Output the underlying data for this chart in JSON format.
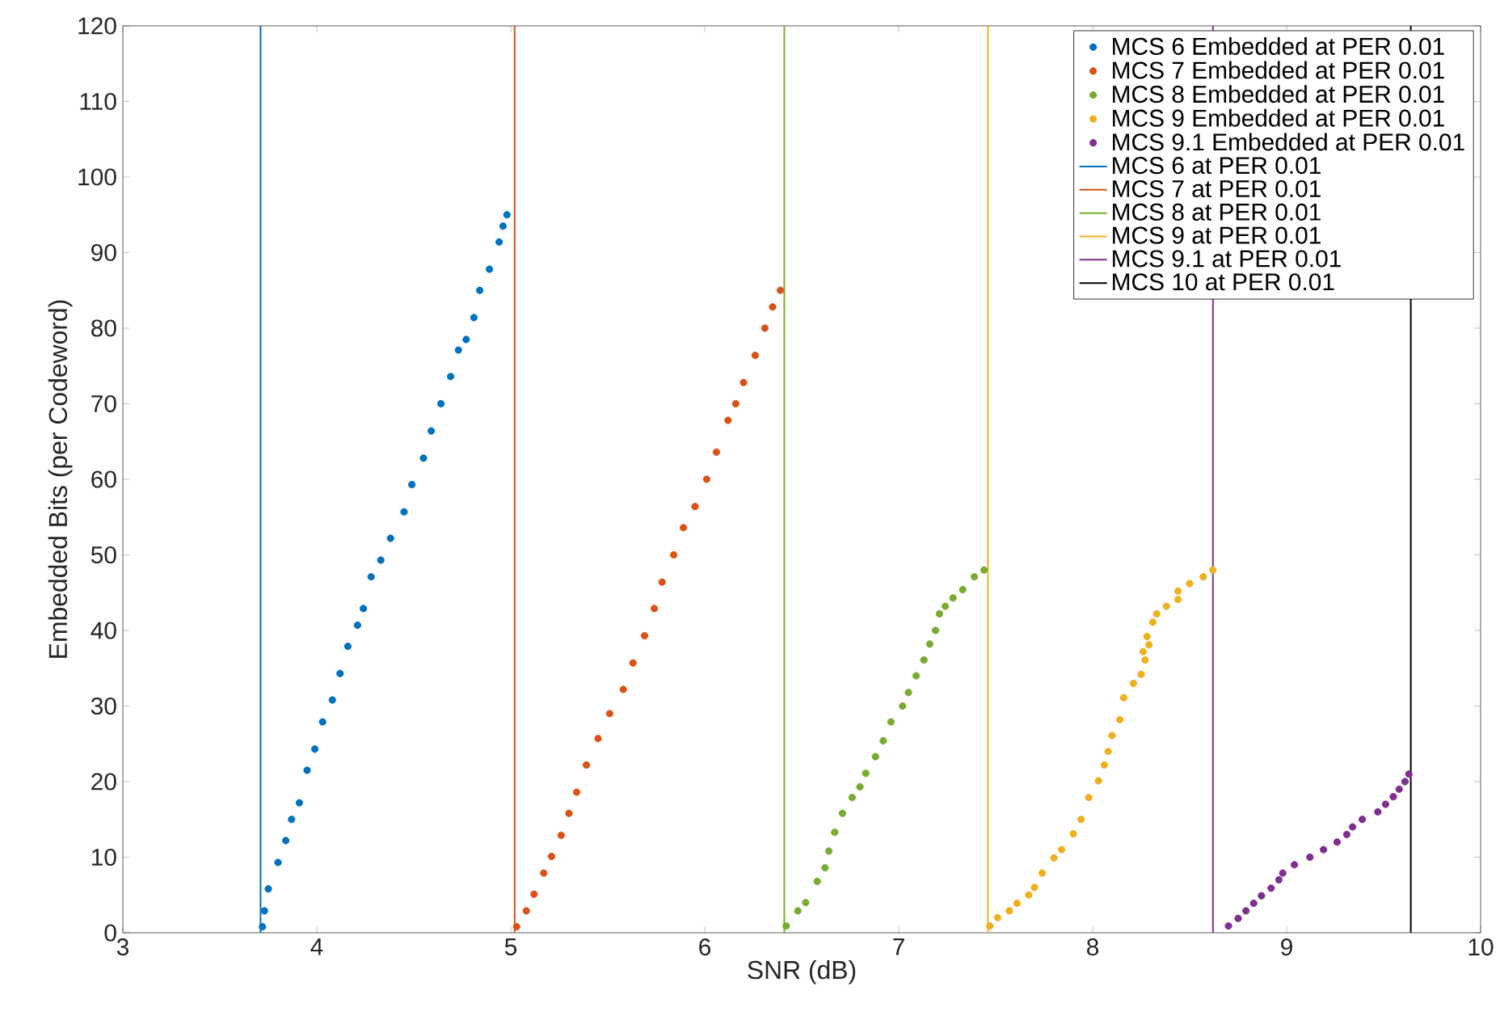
{
  "chart_data": {
    "type": "scatter",
    "xlabel": "SNR (dB)",
    "ylabel": "Embedded Bits (per Codeword)",
    "xlim": [
      3,
      10
    ],
    "ylim": [
      0,
      120
    ],
    "xticks": [
      3,
      4,
      5,
      6,
      7,
      8,
      9,
      10
    ],
    "yticks": [
      0,
      10,
      20,
      30,
      40,
      50,
      60,
      70,
      80,
      90,
      100,
      110,
      120
    ],
    "grid": false,
    "legend": "top right",
    "series": [
      {
        "name": "MCS 6 Embedded at PER 0.01",
        "type": "scatter",
        "marker": "circle",
        "color": "#0072bd",
        "x": [
          3.72,
          3.73,
          3.75,
          3.8,
          3.84,
          3.87,
          3.91,
          3.95,
          3.99,
          4.03,
          4.08,
          4.12,
          4.16,
          4.21,
          4.24,
          4.28,
          4.33,
          4.38,
          4.45,
          4.49,
          4.55,
          4.59,
          4.64,
          4.69,
          4.73,
          4.77,
          4.81,
          4.84,
          4.89,
          4.94,
          4.96,
          4.98
        ],
        "values": [
          0.8,
          2.9,
          5.8,
          9.3,
          12.2,
          15.0,
          17.2,
          21.5,
          24.3,
          27.9,
          30.8,
          34.3,
          37.9,
          40.7,
          42.9,
          47.1,
          49.3,
          52.2,
          55.7,
          59.3,
          62.8,
          66.4,
          70.0,
          73.6,
          77.1,
          78.5,
          81.4,
          85.0,
          87.8,
          91.4,
          93.5,
          95
        ]
      },
      {
        "name": "MCS 7 Embedded at PER 0.01",
        "type": "scatter",
        "marker": "circle",
        "color": "#d95319",
        "x": [
          5.03,
          5.08,
          5.12,
          5.17,
          5.21,
          5.26,
          5.3,
          5.34,
          5.39,
          5.45,
          5.51,
          5.58,
          5.63,
          5.69,
          5.74,
          5.78,
          5.84,
          5.89,
          5.95,
          6.01,
          6.06,
          6.12,
          6.16,
          6.2,
          6.26,
          6.31,
          6.35,
          6.39
        ],
        "values": [
          0.8,
          2.9,
          5.1,
          7.9,
          10.1,
          12.9,
          15.8,
          18.6,
          22.2,
          25.7,
          29.0,
          32.2,
          35.7,
          39.3,
          42.9,
          46.4,
          50.0,
          53.6,
          56.4,
          60.0,
          63.6,
          67.8,
          70.0,
          72.8,
          76.4,
          80.0,
          82.8,
          85
        ]
      },
      {
        "name": "MCS 8 Embedded at PER 0.01",
        "type": "scatter",
        "marker": "circle",
        "color": "#77ac30",
        "x": [
          6.42,
          6.48,
          6.52,
          6.58,
          6.62,
          6.64,
          6.67,
          6.71,
          6.76,
          6.8,
          6.83,
          6.88,
          6.92,
          6.96,
          7.02,
          7.05,
          7.09,
          7.13,
          7.16,
          7.19,
          7.21,
          7.24,
          7.28,
          7.33,
          7.39,
          7.44
        ],
        "values": [
          0.9,
          2.9,
          4.0,
          6.8,
          8.6,
          10.8,
          13.3,
          15.8,
          17.9,
          19.3,
          21.1,
          23.3,
          25.4,
          27.9,
          30.0,
          31.8,
          34.0,
          36.1,
          38.2,
          40.0,
          42.2,
          43.2,
          44.3,
          45.4,
          47.1,
          48
        ]
      },
      {
        "name": "MCS 9 Embedded at PER 0.01",
        "type": "scatter",
        "marker": "circle",
        "color": "#edb120",
        "x": [
          7.47,
          7.51,
          7.57,
          7.61,
          7.67,
          7.7,
          7.74,
          7.8,
          7.84,
          7.9,
          7.94,
          7.98,
          8.03,
          8.06,
          8.08,
          8.1,
          8.14,
          8.16,
          8.21,
          8.25,
          8.27,
          8.26,
          8.29,
          8.28,
          8.31,
          8.33,
          8.38,
          8.44,
          8.44,
          8.5,
          8.57,
          8.62
        ],
        "values": [
          0.9,
          2.0,
          2.9,
          3.9,
          5.0,
          6.0,
          7.9,
          9.9,
          11.0,
          13.1,
          15.0,
          17.9,
          20.1,
          22.2,
          24.0,
          26.1,
          28.2,
          31.1,
          33.0,
          34.2,
          36.1,
          37.2,
          38.1,
          39.2,
          41.1,
          42.2,
          43.2,
          44.1,
          45.2,
          46.2,
          47.1,
          48
        ]
      },
      {
        "name": "MCS 9.1 Embedded at PER 0.01",
        "type": "scatter",
        "marker": "circle",
        "color": "#7e2f8e",
        "x": [
          8.7,
          8.75,
          8.79,
          8.83,
          8.87,
          8.92,
          8.96,
          8.98,
          9.04,
          9.12,
          9.19,
          9.26,
          9.31,
          9.34,
          9.39,
          9.47,
          9.51,
          9.55,
          9.58,
          9.61,
          9.63
        ],
        "values": [
          0.9,
          1.9,
          2.9,
          3.9,
          4.9,
          5.9,
          7.0,
          7.9,
          9.0,
          10.0,
          11.0,
          12.0,
          13.0,
          14.0,
          15.0,
          16.0,
          17.0,
          18.0,
          19.0,
          20.0,
          21.0
        ]
      },
      {
        "name": "MCS 6 at PER 0.01",
        "type": "line",
        "marker": "none",
        "line_style": "solid",
        "color": "#0072bd",
        "x": [
          3.71,
          3.71
        ],
        "values": [
          0,
          120
        ]
      },
      {
        "name": "MCS 7 at PER 0.01",
        "type": "line",
        "marker": "none",
        "line_style": "solid",
        "color": "#d95319",
        "x": [
          5.02,
          5.02
        ],
        "values": [
          0,
          120
        ]
      },
      {
        "name": "MCS 8 at PER 0.01",
        "type": "line",
        "marker": "none",
        "line_style": "solid",
        "color": "#77ac30",
        "x": [
          6.41,
          6.41
        ],
        "values": [
          0,
          120
        ]
      },
      {
        "name": "MCS 9 at PER 0.01",
        "type": "line",
        "marker": "none",
        "line_style": "solid",
        "color": "#edb120",
        "x": [
          7.46,
          7.46
        ],
        "values": [
          0,
          120
        ]
      },
      {
        "name": "MCS 9.1 at PER 0.01",
        "type": "line",
        "marker": "none",
        "line_style": "solid",
        "color": "#7e2f8e",
        "x": [
          8.62,
          8.62
        ],
        "values": [
          0,
          120
        ]
      },
      {
        "name": "MCS 10 at PER 0.01",
        "type": "line",
        "marker": "none",
        "line_style": "solid",
        "color": "#000000",
        "x": [
          9.64,
          9.64
        ],
        "values": [
          0,
          120
        ]
      }
    ]
  }
}
